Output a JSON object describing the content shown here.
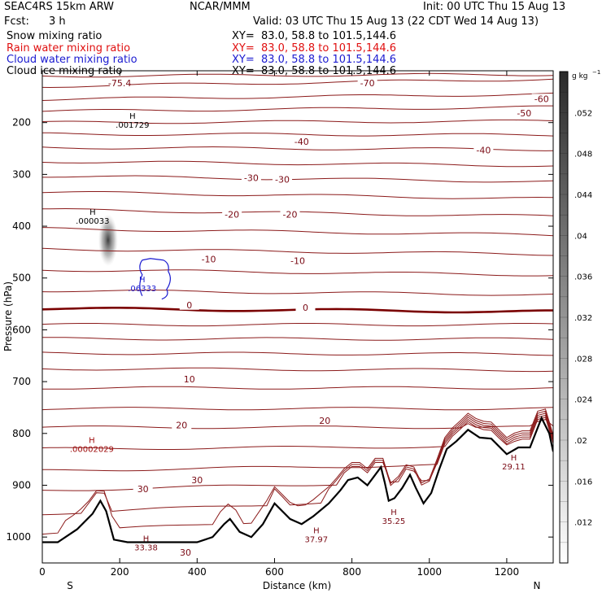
{
  "header": {
    "model": "SEAC4RS 15km ARW",
    "org": "NCAR/MMM",
    "init": "Init: 00 UTC Thu 15 Aug 13",
    "fcst_label": "Fcst:",
    "fcst_value": "3 h",
    "valid": "Valid: 03 UTC Thu 15 Aug 13 (22 CDT Wed 14 Aug 13)",
    "fields": [
      {
        "name": "Snow mixing ratio",
        "xy": "XY=  83.0, 58.8 to 101.5,144.6",
        "color": "#000000"
      },
      {
        "name": "Rain water mixing ratio",
        "xy": "XY=  83.0, 58.8 to 101.5,144.6",
        "color": "#e01010"
      },
      {
        "name": "Cloud water mixing ratio",
        "xy": "XY=  83.0, 58.8 to 101.5,144.6",
        "color": "#1a1ad0"
      },
      {
        "name": "Cloud ice mixing ratio",
        "xy": "XY=  83.0, 58.8 to 101.5,144.6",
        "color": "#000000"
      }
    ]
  },
  "chart_data": {
    "type": "contour",
    "xlabel": "Distance (km)",
    "ylabel": "Pressure (hPa)",
    "xlim": [
      0,
      1320
    ],
    "ylim": [
      100,
      1050
    ],
    "x_ticks": [
      "0",
      "200",
      "400",
      "600",
      "800",
      "1000",
      "1200"
    ],
    "y_ticks": [
      "200",
      "300",
      "400",
      "500",
      "600",
      "700",
      "800",
      "900",
      "1000"
    ],
    "x_tick_values": [
      0,
      200,
      400,
      600,
      800,
      1000,
      1200
    ],
    "y_tick_values": [
      200,
      300,
      400,
      500,
      600,
      700,
      800,
      900,
      1000
    ],
    "end_labels": {
      "left": "S",
      "right": "N"
    },
    "colorbar": {
      "unit": "g kg",
      "unit_exp": "−1",
      "ticks": [
        ".052",
        ".048",
        ".044",
        ".04",
        ".036",
        ".032",
        ".028",
        ".024",
        ".02",
        ".016",
        ".012"
      ],
      "tick_values": [
        0.052,
        0.048,
        0.044,
        0.04,
        0.036,
        0.032,
        0.028,
        0.024,
        0.02,
        0.016,
        0.012
      ],
      "range": [
        0.008,
        0.056
      ]
    },
    "temperature_labels": [
      {
        "text": "-75.4",
        "x": 200,
        "p": 127
      },
      {
        "text": "-70",
        "x": 840,
        "p": 127
      },
      {
        "text": "-60",
        "x": 1290,
        "p": 157
      },
      {
        "text": "-50",
        "x": 1245,
        "p": 185
      },
      {
        "text": "-40",
        "x": 670,
        "p": 240
      },
      {
        "text": "-40",
        "x": 1140,
        "p": 256
      },
      {
        "text": "-30",
        "x": 540,
        "p": 310
      },
      {
        "text": "-30",
        "x": 620,
        "p": 313
      },
      {
        "text": "-20",
        "x": 490,
        "p": 380
      },
      {
        "text": "-20",
        "x": 640,
        "p": 380
      },
      {
        "text": "-10",
        "x": 430,
        "p": 467
      },
      {
        "text": "-10",
        "x": 660,
        "p": 470
      },
      {
        "text": "0",
        "x": 380,
        "p": 555
      },
      {
        "text": "0",
        "x": 680,
        "p": 560
      },
      {
        "text": "10",
        "x": 380,
        "p": 698
      },
      {
        "text": "20",
        "x": 360,
        "p": 787
      },
      {
        "text": "20",
        "x": 730,
        "p": 778
      },
      {
        "text": "30",
        "x": 260,
        "p": 910
      },
      {
        "text": "30",
        "x": 400,
        "p": 893
      },
      {
        "text": "30",
        "x": 370,
        "p": 1033
      }
    ],
    "extrema": [
      {
        "tag": "H",
        "value": ".001729",
        "x": 233,
        "p": 193,
        "color": "#000000"
      },
      {
        "tag": "H",
        "value": ".000033",
        "x": 130,
        "p": 378,
        "color": "#000000"
      },
      {
        "tag": "H",
        "value": ".06333",
        "x": 258,
        "p": 508,
        "color": "#1a1ad0"
      },
      {
        "tag": "H",
        "value": ".00002029",
        "x": 128,
        "p": 818,
        "color": "#a01010"
      },
      {
        "tag": "H",
        "value": "33.38",
        "x": 268,
        "p": 1008,
        "color": "#7a0a14"
      },
      {
        "tag": "H",
        "value": "37.97",
        "x": 708,
        "p": 993,
        "color": "#7a0a14"
      },
      {
        "tag": "H",
        "value": "35.25",
        "x": 908,
        "p": 957,
        "color": "#7a0a14"
      },
      {
        "tag": "H",
        "value": "29.11",
        "x": 1218,
        "p": 852,
        "color": "#7a0a14"
      }
    ],
    "terrain_p": [
      [
        0,
        1010
      ],
      [
        40,
        1010
      ],
      [
        90,
        985
      ],
      [
        130,
        955
      ],
      [
        150,
        930
      ],
      [
        165,
        950
      ],
      [
        185,
        1005
      ],
      [
        220,
        1010
      ],
      [
        300,
        1010
      ],
      [
        400,
        1010
      ],
      [
        440,
        1000
      ],
      [
        470,
        975
      ],
      [
        485,
        965
      ],
      [
        510,
        990
      ],
      [
        540,
        1000
      ],
      [
        570,
        975
      ],
      [
        600,
        935
      ],
      [
        640,
        965
      ],
      [
        670,
        975
      ],
      [
        700,
        960
      ],
      [
        740,
        935
      ],
      [
        770,
        910
      ],
      [
        790,
        890
      ],
      [
        815,
        885
      ],
      [
        840,
        900
      ],
      [
        860,
        880
      ],
      [
        875,
        865
      ],
      [
        885,
        895
      ],
      [
        895,
        930
      ],
      [
        910,
        925
      ],
      [
        930,
        905
      ],
      [
        950,
        880
      ],
      [
        965,
        905
      ],
      [
        985,
        935
      ],
      [
        1005,
        915
      ],
      [
        1025,
        870
      ],
      [
        1045,
        830
      ],
      [
        1070,
        815
      ],
      [
        1100,
        793
      ],
      [
        1130,
        808
      ],
      [
        1160,
        810
      ],
      [
        1200,
        840
      ],
      [
        1230,
        827
      ],
      [
        1260,
        827
      ],
      [
        1290,
        770
      ],
      [
        1310,
        800
      ],
      [
        1320,
        835
      ]
    ],
    "contour_p_left": [
      110,
      130,
      155,
      178,
      200,
      222,
      248,
      275,
      303,
      334,
      368,
      405,
      444,
      484,
      524,
      559,
      590,
      617,
      645,
      675,
      712,
      752,
      788,
      830,
      872,
      910,
      955,
      992
    ],
    "contour_p_right": [
      107,
      116,
      145,
      170,
      197,
      224,
      252,
      283,
      314,
      347,
      381,
      417,
      454,
      494,
      532,
      565,
      590,
      618,
      647,
      678,
      712,
      752,
      788,
      824,
      858,
      888,
      915,
      940
    ],
    "freezing_level_index": 15
  }
}
